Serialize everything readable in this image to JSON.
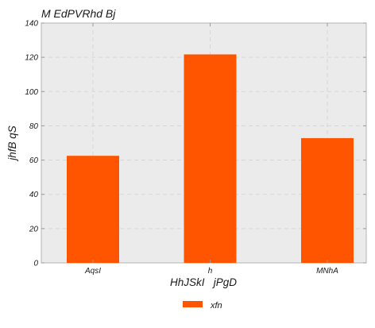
{
  "chart_data": {
    "type": "bar",
    "title": "M EdPVRhd Bj",
    "xlabel": "HhJSkI   jPgD",
    "ylabel": "jhfB qS",
    "categories": [
      "AqsI",
      "h",
      "MNhA"
    ],
    "series": [
      {
        "name": "xfn",
        "values": [
          62.5,
          121.7,
          72.8
        ]
      }
    ],
    "ylim": [
      0,
      140
    ],
    "yticks": [
      0,
      20,
      40,
      60,
      80,
      100,
      120,
      140
    ],
    "grid": true,
    "legend_position": "bottom-center",
    "colors": {
      "bar": "#ff5500",
      "plot_background": "#ebebeb",
      "grid": "#d6d6d6",
      "frame": "#b5b5b5"
    }
  }
}
